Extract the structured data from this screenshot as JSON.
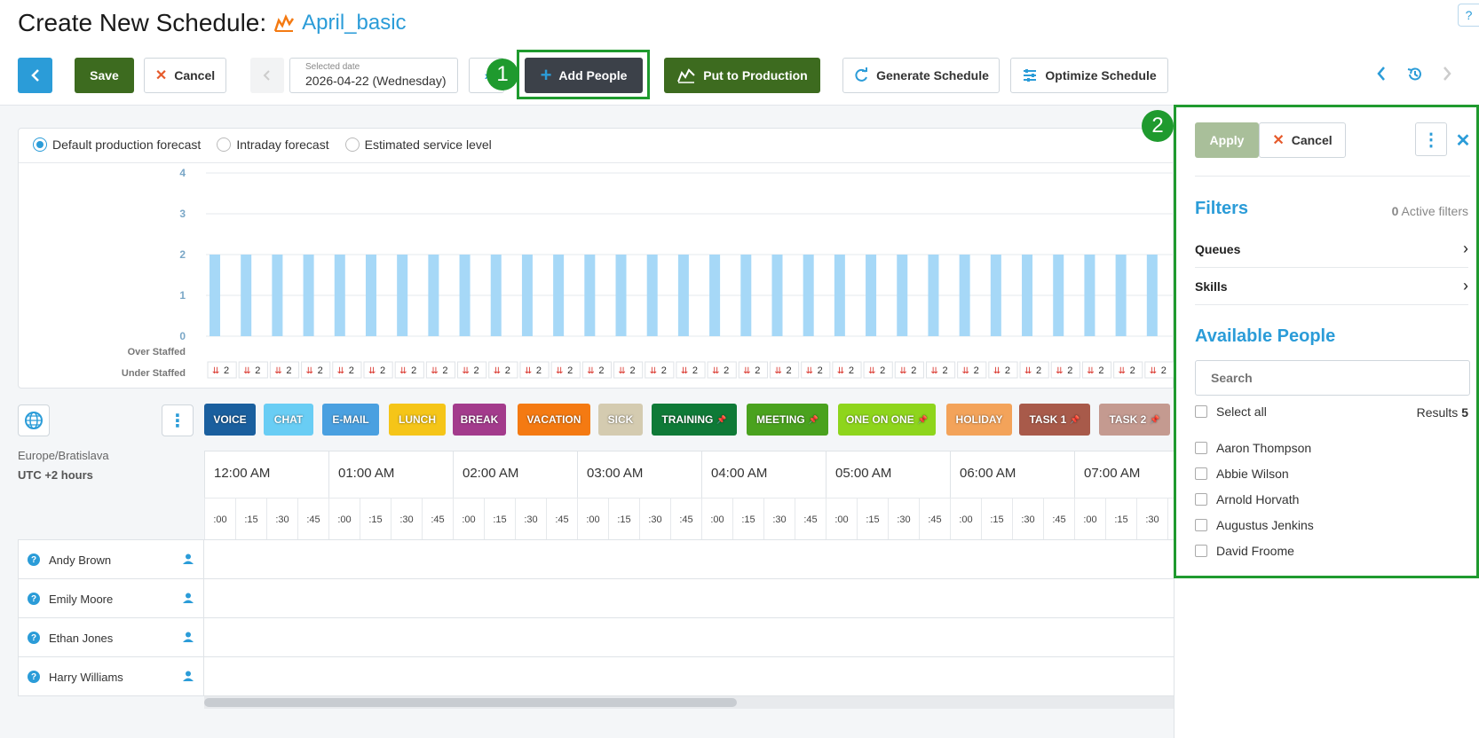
{
  "header": {
    "title": "Create New Schedule:",
    "schedule_name": "April_basic",
    "help_icon": "?"
  },
  "toolbar": {
    "save_label": "Save",
    "cancel_label": "Cancel",
    "date_caption": "Selected date",
    "date_value": "2026-04-22 (Wednesday)",
    "add_people_label": "Add People",
    "put_to_production_label": "Put to Production",
    "generate_label": "Generate Schedule",
    "optimize_label": "Optimize Schedule"
  },
  "steps": {
    "step1": "1",
    "step2": "2"
  },
  "forecast": {
    "options": [
      "Default production forecast",
      "Intraday forecast",
      "Estimated service level"
    ],
    "selected_index": 0,
    "over_staffed_label": "Over Staffed",
    "under_staffed_label": "Under Staffed"
  },
  "chart_data": {
    "type": "bar",
    "y_ticks": [
      "4",
      "3",
      "2",
      "1",
      "0"
    ],
    "ylim": [
      0,
      4
    ],
    "values": [
      2,
      2,
      2,
      2,
      2,
      2,
      2,
      2,
      2,
      2,
      2,
      2,
      2,
      2,
      2,
      2,
      2,
      2,
      2,
      2,
      2,
      2,
      2,
      2,
      2,
      2,
      2,
      2,
      2,
      2,
      2
    ],
    "under_staffed_values": [
      2,
      2,
      2,
      2,
      2,
      2,
      2,
      2,
      2,
      2,
      2,
      2,
      2,
      2,
      2,
      2,
      2,
      2,
      2,
      2,
      2,
      2,
      2,
      2,
      2,
      2,
      2,
      2,
      2,
      2,
      2
    ],
    "bar_color": "#a6d8f7",
    "grid": true
  },
  "activities": [
    {
      "label": "VOICE",
      "color": "#1a5f9e",
      "pinned": false
    },
    {
      "label": "CHAT",
      "color": "#69cdf4",
      "pinned": false
    },
    {
      "label": "E-MAIL",
      "color": "#4aa0e0",
      "pinned": false
    },
    {
      "label": "LUNCH",
      "color": "#f5c518",
      "pinned": false
    },
    {
      "label": "BREAK",
      "color": "#a33b8c",
      "pinned": false
    },
    {
      "label": "VACATION",
      "color": "#f47a12",
      "pinned": false
    },
    {
      "label": "SICK",
      "color": "#d4cbb0",
      "pinned": false
    },
    {
      "label": "TRAINING",
      "color": "#0f7a37",
      "pinned": true
    },
    {
      "label": "MEETING",
      "color": "#4aa21e",
      "pinned": true
    },
    {
      "label": "ONE ON ONE",
      "color": "#8ed51c",
      "pinned": true
    },
    {
      "label": "HOLIDAY",
      "color": "#f3a35a",
      "pinned": false
    },
    {
      "label": "TASK 1",
      "color": "#a85a4a",
      "pinned": true
    },
    {
      "label": "TASK 2",
      "color": "#c49a90",
      "pinned": true
    }
  ],
  "timeline": {
    "timezone": "Europe/Bratislava",
    "offset": "UTC +2 hours",
    "hours": [
      "12:00 AM",
      "01:00 AM",
      "02:00 AM",
      "03:00 AM",
      "04:00 AM",
      "05:00 AM",
      "06:00 AM",
      "07:00 AM"
    ],
    "quarters": [
      ":00",
      ":15",
      ":30",
      ":45"
    ]
  },
  "people": [
    "Andy Brown",
    "Emily Moore",
    "Ethan Jones",
    "Harry Williams"
  ],
  "panel": {
    "apply_label": "Apply",
    "cancel_label": "Cancel",
    "filters_title": "Filters",
    "active_filters_count": "0",
    "active_filters_label": "Active filters",
    "filter_items": [
      "Queues",
      "Skills"
    ],
    "available_title": "Available People",
    "search_placeholder": "Search",
    "select_all_label": "Select all",
    "results_label": "Results",
    "results_count": "5",
    "available_people": [
      "Aaron Thompson",
      "Abbie Wilson",
      "Arnold Horvath",
      "Augustus Jenkins",
      "David Froome"
    ]
  },
  "colors": {
    "accent_blue": "#2b9cd8",
    "primary_green": "#3d6b1f",
    "highlight_green": "#1f9a2e",
    "apply_disabled": "#a9bf9a"
  }
}
